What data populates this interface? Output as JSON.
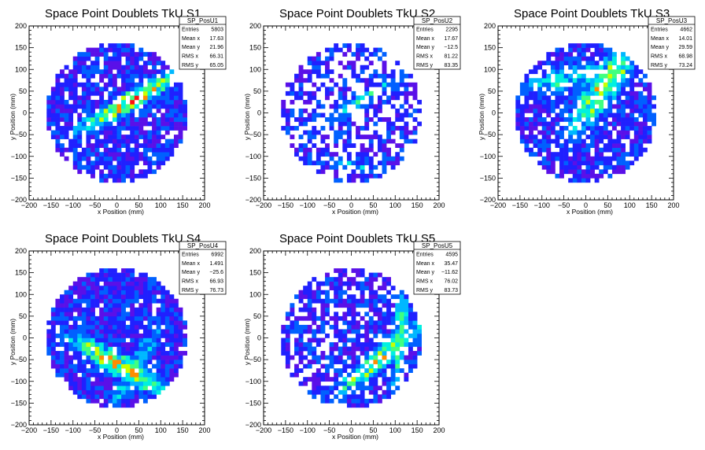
{
  "chart_data": [
    {
      "type": "heatmap",
      "title": "Space Point Doublets TkU S1",
      "xlabel": "x Position (mm)",
      "ylabel": "y Position (mm)",
      "xlim": [
        -200,
        200
      ],
      "ylim": [
        -200,
        200
      ],
      "xticks": [
        "−200",
        "−150",
        "−100",
        "−50",
        "0",
        "50",
        "100",
        "150",
        "200"
      ],
      "yticks": [
        "200",
        "150",
        "100",
        "50",
        "0",
        "−50",
        "−100",
        "−150",
        "−200"
      ],
      "stats_name": "SP_PosU1",
      "stats": [
        {
          "label": "Entries",
          "value": "5803"
        },
        {
          "label": "Mean x",
          "value": "17.63"
        },
        {
          "label": "Mean y",
          "value": "21.96"
        },
        {
          "label": "RMS x",
          "value": "66.31"
        },
        {
          "label": "RMS y",
          "value": "65.05"
        }
      ],
      "radius_mm": 160,
      "bin_mm": 10,
      "band": {
        "center": [
          35,
          30
        ],
        "angle_deg": 30,
        "width_mm": 18,
        "peak_density": 0.95
      },
      "band2": null,
      "fill_fraction": 0.85,
      "seed": 11
    },
    {
      "type": "heatmap",
      "title": "Space Point Doublets TkU S2",
      "xlabel": "x Position (mm)",
      "ylabel": "y Position (mm)",
      "xlim": [
        -200,
        200
      ],
      "ylim": [
        -200,
        200
      ],
      "xticks": [
        "−200",
        "−150",
        "−100",
        "−50",
        "0",
        "50",
        "100",
        "150",
        "200"
      ],
      "yticks": [
        "200",
        "150",
        "100",
        "50",
        "0",
        "−50",
        "−100",
        "−150",
        "−200"
      ],
      "stats_name": "SP_PosU2",
      "stats": [
        {
          "label": "Entries",
          "value": "2295"
        },
        {
          "label": "Mean x",
          "value": "17.67"
        },
        {
          "label": "Mean y",
          "value": "−12.5"
        },
        {
          "label": "RMS x",
          "value": "81.22"
        },
        {
          "label": "RMS y",
          "value": "83.35"
        }
      ],
      "radius_mm": 160,
      "bin_mm": 10,
      "band": {
        "center": [
          40,
          40
        ],
        "angle_deg": 30,
        "width_mm": 14,
        "peak_density": 0.6
      },
      "band2": {
        "center": [
          0,
          -120
        ],
        "angle_deg": -10,
        "width_mm": 12,
        "peak_density": 0.5
      },
      "fill_fraction": 0.55,
      "seed": 23
    },
    {
      "type": "heatmap",
      "title": "Space Point Doublets TkU S3",
      "xlabel": "x Position (mm)",
      "ylabel": "y Position (mm)",
      "xlim": [
        -200,
        200
      ],
      "ylim": [
        -200,
        200
      ],
      "xticks": [
        "−200",
        "−150",
        "−100",
        "−50",
        "0",
        "50",
        "100",
        "150",
        "200"
      ],
      "yticks": [
        "200",
        "150",
        "100",
        "50",
        "0",
        "−50",
        "−100",
        "−150",
        "−200"
      ],
      "stats_name": "SP_PosU3",
      "stats": [
        {
          "label": "Entries",
          "value": "4662"
        },
        {
          "label": "Mean x",
          "value": "14.01"
        },
        {
          "label": "Mean y",
          "value": "29.59"
        },
        {
          "label": "RMS x",
          "value": "68.98"
        },
        {
          "label": "RMS y",
          "value": "73.24"
        }
      ],
      "radius_mm": 160,
      "bin_mm": 10,
      "band": {
        "center": [
          40,
          60
        ],
        "angle_deg": 55,
        "width_mm": 30,
        "peak_density": 0.85
      },
      "band2": {
        "center": [
          -30,
          80
        ],
        "angle_deg": 10,
        "width_mm": 30,
        "peak_density": 0.6
      },
      "fill_fraction": 0.8,
      "seed": 37
    },
    {
      "type": "heatmap",
      "title": "Space Point Doublets TkU S4",
      "xlabel": "x Position (mm)",
      "ylabel": "y Position (mm)",
      "xlim": [
        -200,
        200
      ],
      "ylim": [
        -200,
        200
      ],
      "xticks": [
        "−200",
        "−150",
        "−100",
        "−50",
        "0",
        "50",
        "100",
        "150",
        "200"
      ],
      "yticks": [
        "200",
        "150",
        "100",
        "50",
        "0",
        "−50",
        "−100",
        "−150",
        "−200"
      ],
      "stats_name": "SP_PosU4",
      "stats": [
        {
          "label": "Entries",
          "value": "6992"
        },
        {
          "label": "Mean x",
          "value": "1.491"
        },
        {
          "label": "Mean y",
          "value": "−25.6"
        },
        {
          "label": "RMS x",
          "value": "66.93"
        },
        {
          "label": "RMS y",
          "value": "76.73"
        }
      ],
      "radius_mm": 160,
      "bin_mm": 10,
      "band": {
        "center": [
          10,
          -65
        ],
        "angle_deg": -30,
        "width_mm": 22,
        "peak_density": 0.9
      },
      "band2": {
        "center": [
          40,
          -70
        ],
        "angle_deg": 60,
        "width_mm": 18,
        "peak_density": 0.6
      },
      "fill_fraction": 0.92,
      "seed": 51
    },
    {
      "type": "heatmap",
      "title": "Space Point Doublets TkU S5",
      "xlabel": "x Position (mm)",
      "ylabel": "y Position (mm)",
      "xlim": [
        -200,
        200
      ],
      "ylim": [
        -200,
        200
      ],
      "xticks": [
        "−200",
        "−150",
        "−100",
        "−50",
        "0",
        "50",
        "100",
        "150",
        "200"
      ],
      "yticks": [
        "200",
        "150",
        "100",
        "50",
        "0",
        "−50",
        "−100",
        "−150",
        "−200"
      ],
      "stats_name": "SP_PosU5",
      "stats": [
        {
          "label": "Entries",
          "value": "4595"
        },
        {
          "label": "Mean x",
          "value": "35.47"
        },
        {
          "label": "Mean y",
          "value": "−11.62"
        },
        {
          "label": "RMS x",
          "value": "76.02"
        },
        {
          "label": "RMS y",
          "value": "83.73"
        }
      ],
      "radius_mm": 160,
      "bin_mm": 10,
      "band": {
        "center": [
          60,
          -50
        ],
        "angle_deg": 40,
        "width_mm": 20,
        "peak_density": 0.8
      },
      "band2": {
        "center": [
          110,
          0
        ],
        "angle_deg": 85,
        "width_mm": 14,
        "peak_density": 0.7
      },
      "fill_fraction": 0.72,
      "seed": 67
    }
  ],
  "palette": [
    "#3b00c8",
    "#5a10e8",
    "#2020ff",
    "#0060ff",
    "#00b8ff",
    "#00f0e0",
    "#40ff80",
    "#c8ff00",
    "#ff8c00",
    "#ff1010"
  ]
}
